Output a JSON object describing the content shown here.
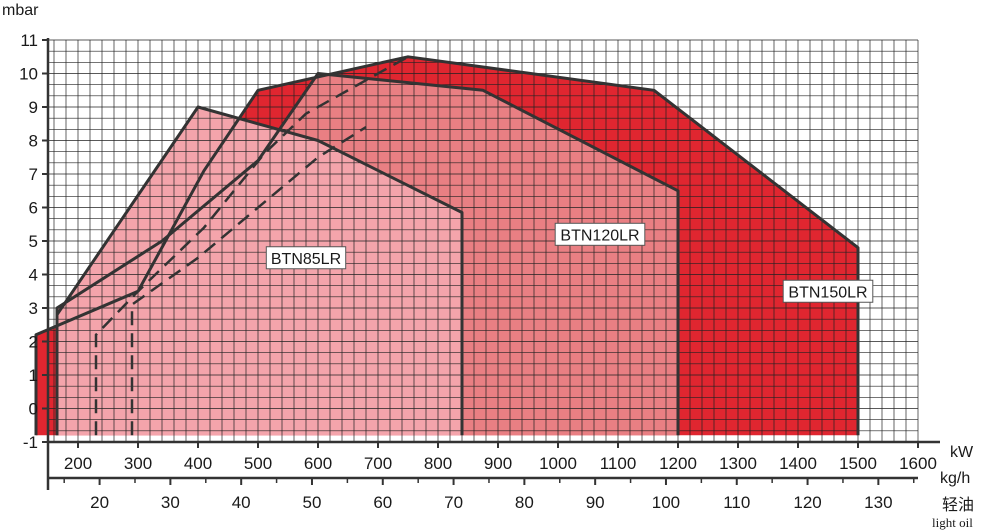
{
  "chart_data": {
    "type": "area",
    "y_unit": "mbar",
    "x_unit": "kW",
    "x2_unit_line1": "kg/h",
    "x2_unit_line2": "轻油",
    "x2_unit_line3": "light oil",
    "ylim": [
      -1,
      11
    ],
    "yticks": [
      -1,
      0,
      1,
      2,
      3,
      4,
      5,
      6,
      7,
      8,
      9,
      10,
      11
    ],
    "xlim": [
      150,
      1600
    ],
    "xticks": [
      200,
      300,
      400,
      500,
      600,
      700,
      800,
      900,
      1000,
      1100,
      1200,
      1300,
      1400,
      1500,
      1600
    ],
    "x2_ticks": [
      20,
      30,
      40,
      50,
      60,
      70,
      80,
      90,
      100,
      110,
      120,
      130
    ],
    "x2_per_kw": 0.08475,
    "grid": true,
    "series": [
      {
        "name": "BTN150LR",
        "color": "#e02630",
        "points": [
          [
            130,
            -0.8
          ],
          [
            130,
            2.2
          ],
          [
            300,
            3.5
          ],
          [
            410,
            7.1
          ],
          [
            500,
            9.5
          ],
          [
            750,
            10.5
          ],
          [
            1160,
            9.5
          ],
          [
            1500,
            4.8
          ],
          [
            1500,
            -0.8
          ]
        ]
      },
      {
        "name": "BTN120LR",
        "color": "#e97f83",
        "points": [
          [
            165,
            -0.8
          ],
          [
            165,
            3.0
          ],
          [
            340,
            5.0
          ],
          [
            500,
            7.4
          ],
          [
            600,
            10.0
          ],
          [
            875,
            9.5
          ],
          [
            1200,
            6.5
          ],
          [
            1200,
            -0.8
          ]
        ]
      },
      {
        "name": "BTN85LR",
        "color": "#f4a4ab",
        "points": [
          [
            165,
            -0.8
          ],
          [
            165,
            2.8
          ],
          [
            400,
            9.0
          ],
          [
            600,
            8.0
          ],
          [
            840,
            5.85
          ],
          [
            840,
            -0.8
          ]
        ]
      }
    ],
    "dashed_lines": [
      [
        [
          230,
          -0.8
        ],
        [
          230,
          2.2
        ],
        [
          300,
          3.5
        ],
        [
          410,
          5.4
        ],
        [
          510,
          7.6
        ],
        [
          580,
          8.8
        ],
        [
          750,
          10.5
        ]
      ],
      [
        [
          290,
          -0.8
        ],
        [
          290,
          3.1
        ],
        [
          400,
          4.5
        ],
        [
          600,
          7.5
        ],
        [
          680,
          8.4
        ]
      ]
    ],
    "labels": [
      {
        "text": "BTN85LR",
        "x": 580,
        "y": 4.5
      },
      {
        "text": "BTN120LR",
        "x": 1070,
        "y": 5.2
      },
      {
        "text": "BTN150LR",
        "x": 1450,
        "y": 3.5
      }
    ]
  }
}
